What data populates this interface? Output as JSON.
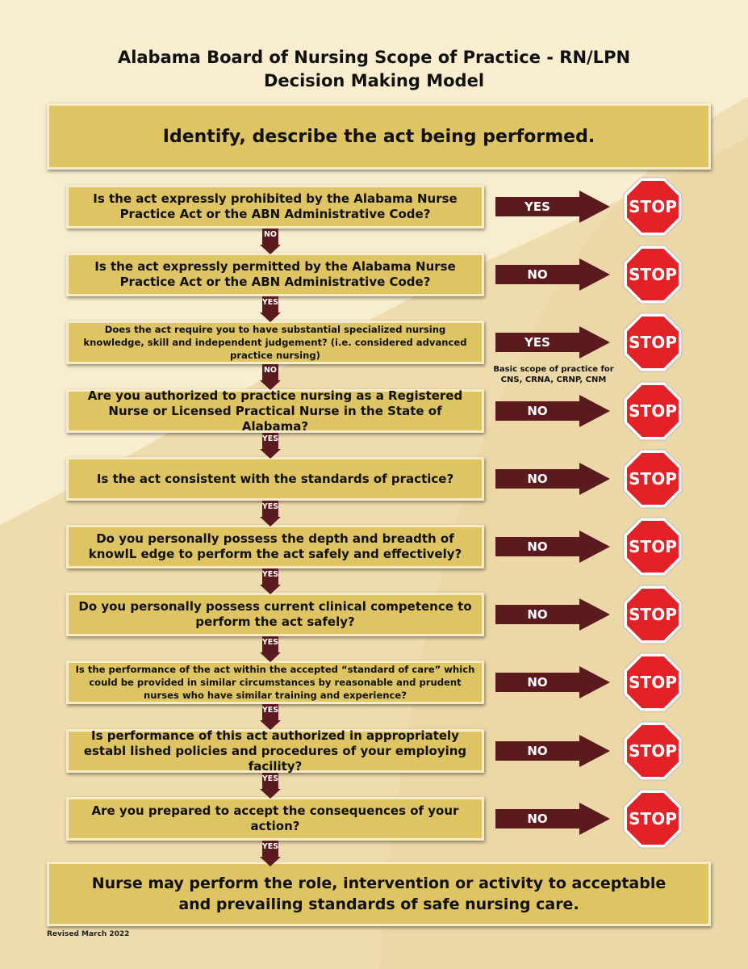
{
  "title_line1": "Alabama Board of Nursing Scope of Practice - RN/LPN",
  "title_line2": "Decision Making Model",
  "header_box": "Identify, describe the act being performed.",
  "steps": [
    {
      "question": "Is the act expressly prohibited by the Alabama Nurse Practice Act or the ABN Administrative Code?",
      "side": "YES",
      "down": "NO"
    },
    {
      "question": "Is the act expressly permitted by the Alabama Nurse Practice Act or the ABN Administrative Code?",
      "side": "NO",
      "down": "YES"
    },
    {
      "question": "Does the act require you to have substantial specialized nursing knowledge, skill and independent judgement? (i.e. considered advanced practice nursing)",
      "side": "YES",
      "down": "NO"
    },
    {
      "question": "Are you authorized to practice nursing as a Registered Nurse or Licensed Practical Nurse in the State of Alabama?",
      "side": "NO",
      "down": "YES"
    },
    {
      "question": "Is the act consistent with the standards of practice?",
      "side": "NO",
      "down": "YES"
    },
    {
      "question": "Do you personally possess the depth and breadth of knowlL edge to perform the act safely and effectively?",
      "side": "NO",
      "down": "YES"
    },
    {
      "question": "Do you personally possess current clinical competence to perform the act safely?",
      "side": "NO",
      "down": "YES"
    },
    {
      "question": "Is the performance of the act within the accepted “standard of care” which could be provided in similar circumstances by reasonable and prudent nurses who have similar training and experience?",
      "side": "NO",
      "down": "YES"
    },
    {
      "question": "Is performance of this act authorized in appropriately establ lished policies and procedures of your employing facility?",
      "side": "NO",
      "down": "YES"
    },
    {
      "question": "Are you prepared to accept the consequences of your action?",
      "side": "NO",
      "down": "YES"
    }
  ],
  "stop_label": "STOP",
  "advanced_note": "Basic scope of practice for CNS, CRNA, CRNP, CNM",
  "final_box": "Nurse may perform the role, intervention or activity to acceptable and prevailing standards of safe nursing care.",
  "footer": "Revised March 2022",
  "colors": {
    "box": "#dfc463",
    "arrow": "#5a1a1e",
    "stop": "#e32227",
    "background": "#f3e2ba"
  }
}
